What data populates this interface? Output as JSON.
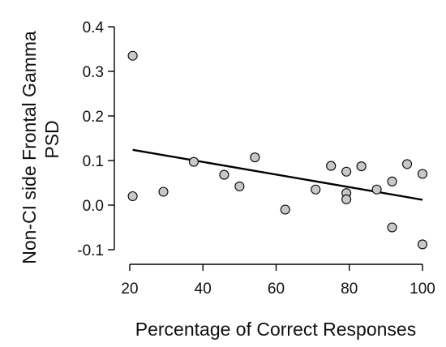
{
  "chart_data": {
    "type": "scatter",
    "title": "",
    "xlabel": "Percentage of Correct Responses",
    "ylabel_line1": "Non-CI side Frontal Gamma",
    "ylabel_line2": "PSD",
    "xlim": [
      20,
      100
    ],
    "ylim": [
      -0.1,
      0.4
    ],
    "xticks": [
      20,
      40,
      60,
      80,
      100
    ],
    "xtick_labels": [
      "20",
      "40",
      "60",
      "80",
      "100"
    ],
    "yticks": [
      -0.1,
      0.0,
      0.1,
      0.2,
      0.3,
      0.4
    ],
    "ytick_labels": [
      "-0.1",
      "0.0",
      "0.1",
      "0.2",
      "0.3",
      "0.4"
    ],
    "grid": false,
    "legend": "none",
    "point_color": "#c8c8c8",
    "points": [
      {
        "x": 20.8,
        "y": 0.335
      },
      {
        "x": 20.8,
        "y": 0.02
      },
      {
        "x": 29.2,
        "y": 0.03
      },
      {
        "x": 37.5,
        "y": 0.097
      },
      {
        "x": 45.8,
        "y": 0.068
      },
      {
        "x": 50.0,
        "y": 0.042
      },
      {
        "x": 54.2,
        "y": 0.107
      },
      {
        "x": 62.5,
        "y": -0.01
      },
      {
        "x": 70.8,
        "y": 0.035
      },
      {
        "x": 75.0,
        "y": 0.088
      },
      {
        "x": 79.2,
        "y": 0.075
      },
      {
        "x": 79.2,
        "y": 0.027
      },
      {
        "x": 79.2,
        "y": 0.013
      },
      {
        "x": 83.3,
        "y": 0.087
      },
      {
        "x": 87.5,
        "y": 0.035
      },
      {
        "x": 91.7,
        "y": 0.053
      },
      {
        "x": 91.7,
        "y": -0.05
      },
      {
        "x": 95.8,
        "y": 0.092
      },
      {
        "x": 100.0,
        "y": 0.07
      },
      {
        "x": 100.0,
        "y": -0.088
      }
    ],
    "fit_line": {
      "x": [
        20.8,
        100.0
      ],
      "y": [
        0.124,
        0.012
      ]
    }
  }
}
